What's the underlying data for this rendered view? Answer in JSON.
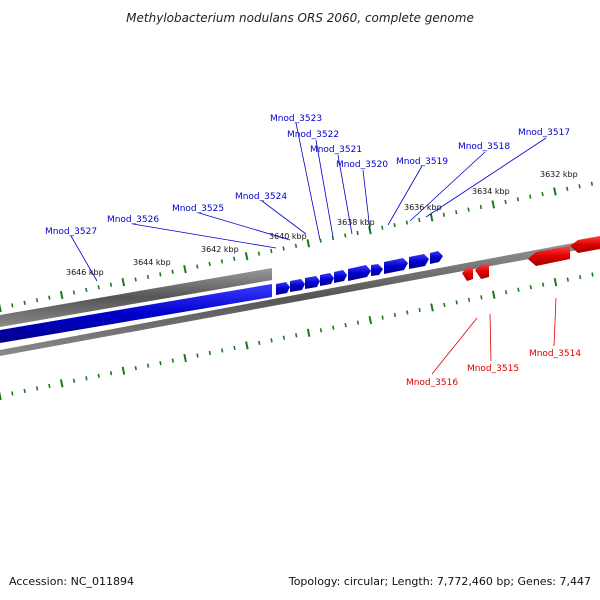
{
  "title": "Methylobacterium nodulans ORS 2060, complete genome",
  "footer": {
    "accession": "Accession: NC_011894",
    "summary": "Topology: circular; Length: 7,772,460 bp; Genes: 7,447"
  },
  "ticks": [
    "3646 kbp",
    "3644 kbp",
    "3642 kbp",
    "3640 kbp",
    "3638 kbp",
    "3636 kbp",
    "3634 kbp",
    "3632 kbp"
  ],
  "genes_forward": [
    "Mnod_3527",
    "Mnod_3526",
    "Mnod_3525",
    "Mnod_3524",
    "Mnod_3523",
    "Mnod_3522",
    "Mnod_3521",
    "Mnod_3520",
    "Mnod_3519",
    "Mnod_3518",
    "Mnod_3517"
  ],
  "genes_reverse": [
    "Mnod_3516",
    "Mnod_3515",
    "Mnod_3514"
  ],
  "colors": {
    "forward": "#0000cc",
    "reverse": "#dd0000",
    "backbone": "#777777",
    "ticks": "#1a7a1a"
  }
}
